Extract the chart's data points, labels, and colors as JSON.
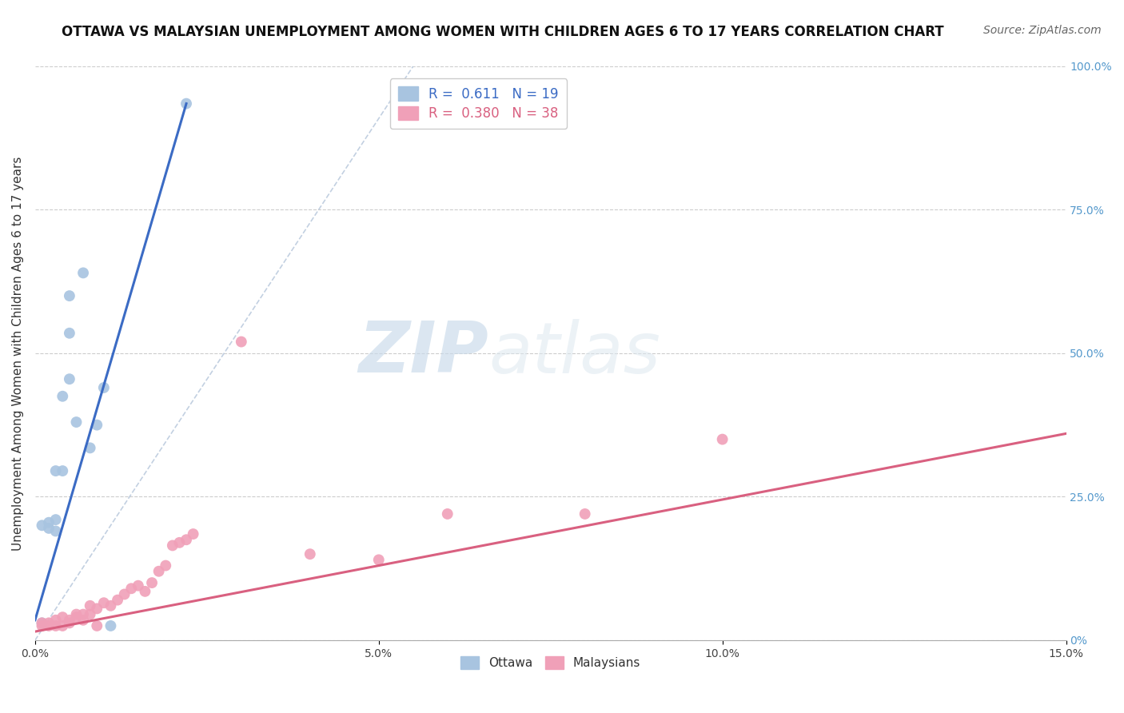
{
  "title": "OTTAWA VS MALAYSIAN UNEMPLOYMENT AMONG WOMEN WITH CHILDREN AGES 6 TO 17 YEARS CORRELATION CHART",
  "source": "Source: ZipAtlas.com",
  "ylabel": "Unemployment Among Women with Children Ages 6 to 17 years",
  "xlim": [
    0.0,
    0.15
  ],
  "ylim": [
    0.0,
    1.0
  ],
  "xticks": [
    0.0,
    0.05,
    0.1,
    0.15
  ],
  "xticklabels": [
    "0.0%",
    "5.0%",
    "10.0%",
    "15.0%"
  ],
  "yticks_right": [
    0.0,
    0.25,
    0.5,
    0.75,
    1.0
  ],
  "yticklabels_right": [
    "0%",
    "25.0%",
    "50.0%",
    "75.0%",
    "100.0%"
  ],
  "legend_ottawa_r": "0.611",
  "legend_ottawa_n": "19",
  "legend_malaysians_r": "0.380",
  "legend_malaysians_n": "38",
  "ottawa_color": "#a8c4e0",
  "malaysians_color": "#f0a0b8",
  "ottawa_line_color": "#3b6bc4",
  "malaysians_line_color": "#d96080",
  "ref_line_color": "#b8c8dc",
  "background_color": "#ffffff",
  "watermark_zip": "ZIP",
  "watermark_atlas": "atlas",
  "ottawa_x": [
    0.001,
    0.001,
    0.002,
    0.002,
    0.003,
    0.003,
    0.003,
    0.004,
    0.004,
    0.005,
    0.005,
    0.005,
    0.006,
    0.007,
    0.008,
    0.009,
    0.01,
    0.011,
    0.022
  ],
  "ottawa_y": [
    0.03,
    0.2,
    0.195,
    0.205,
    0.19,
    0.21,
    0.295,
    0.295,
    0.425,
    0.455,
    0.535,
    0.6,
    0.38,
    0.64,
    0.335,
    0.375,
    0.44,
    0.025,
    0.935
  ],
  "malaysians_x": [
    0.001,
    0.001,
    0.002,
    0.002,
    0.003,
    0.003,
    0.004,
    0.004,
    0.005,
    0.005,
    0.006,
    0.006,
    0.007,
    0.007,
    0.008,
    0.008,
    0.009,
    0.009,
    0.01,
    0.011,
    0.012,
    0.013,
    0.014,
    0.015,
    0.016,
    0.017,
    0.018,
    0.019,
    0.02,
    0.021,
    0.022,
    0.023,
    0.03,
    0.04,
    0.05,
    0.06,
    0.08,
    0.1
  ],
  "malaysians_y": [
    0.025,
    0.03,
    0.025,
    0.03,
    0.025,
    0.035,
    0.025,
    0.04,
    0.03,
    0.035,
    0.04,
    0.045,
    0.035,
    0.045,
    0.045,
    0.06,
    0.025,
    0.055,
    0.065,
    0.06,
    0.07,
    0.08,
    0.09,
    0.095,
    0.085,
    0.1,
    0.12,
    0.13,
    0.165,
    0.17,
    0.175,
    0.185,
    0.52,
    0.15,
    0.14,
    0.22,
    0.22,
    0.35
  ],
  "ottawa_line_x0": 0.0,
  "ottawa_line_y0": 0.035,
  "ottawa_line_x1": 0.022,
  "ottawa_line_y1": 0.935,
  "malay_line_x0": 0.0,
  "malay_line_y0": 0.015,
  "malay_line_x1": 0.15,
  "malay_line_y1": 0.36,
  "ref_line_x0": 0.0,
  "ref_line_y0": 0.0,
  "ref_line_x1": 0.055,
  "ref_line_y1": 1.0,
  "title_fontsize": 12,
  "axis_fontsize": 11,
  "tick_fontsize": 10,
  "source_fontsize": 10,
  "marker_size": 100
}
